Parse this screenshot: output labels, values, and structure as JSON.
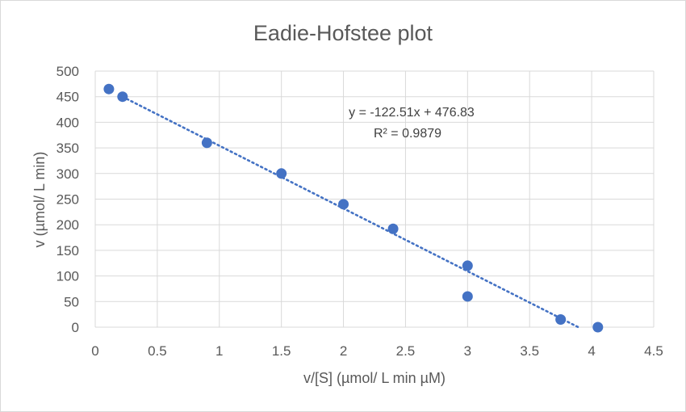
{
  "chart_data": {
    "type": "scatter",
    "title": "Eadie-Hofstee plot",
    "xlabel": "v/[S] (µmol/ L min µM)",
    "ylabel": "v (µmol/ L min)",
    "xlim": [
      0,
      4.5
    ],
    "ylim": [
      0,
      500
    ],
    "x_ticks": [
      "0",
      "0.5",
      "1",
      "1.5",
      "2",
      "2.5",
      "3",
      "3.5",
      "4",
      "4.5"
    ],
    "y_ticks": [
      "0",
      "50",
      "100",
      "150",
      "200",
      "250",
      "300",
      "350",
      "400",
      "450",
      "500"
    ],
    "grid": true,
    "series": [
      {
        "points": [
          {
            "x": 0.11,
            "y": 465
          },
          {
            "x": 0.22,
            "y": 450
          },
          {
            "x": 0.9,
            "y": 360
          },
          {
            "x": 1.5,
            "y": 300
          },
          {
            "x": 2.0,
            "y": 240
          },
          {
            "x": 2.4,
            "y": 192
          },
          {
            "x": 3.0,
            "y": 120
          },
          {
            "x": 3.0,
            "y": 60
          },
          {
            "x": 3.75,
            "y": 15
          },
          {
            "x": 4.05,
            "y": 0
          }
        ],
        "color": "#4472C4"
      }
    ],
    "trendline": {
      "type": "linear",
      "slope": -122.51,
      "intercept": 476.83,
      "x_start": 0.22,
      "equation": "y = -122.51x + 476.83",
      "r_squared": "R² = 0.9879",
      "style": "dotted",
      "color": "#4472C4"
    }
  }
}
